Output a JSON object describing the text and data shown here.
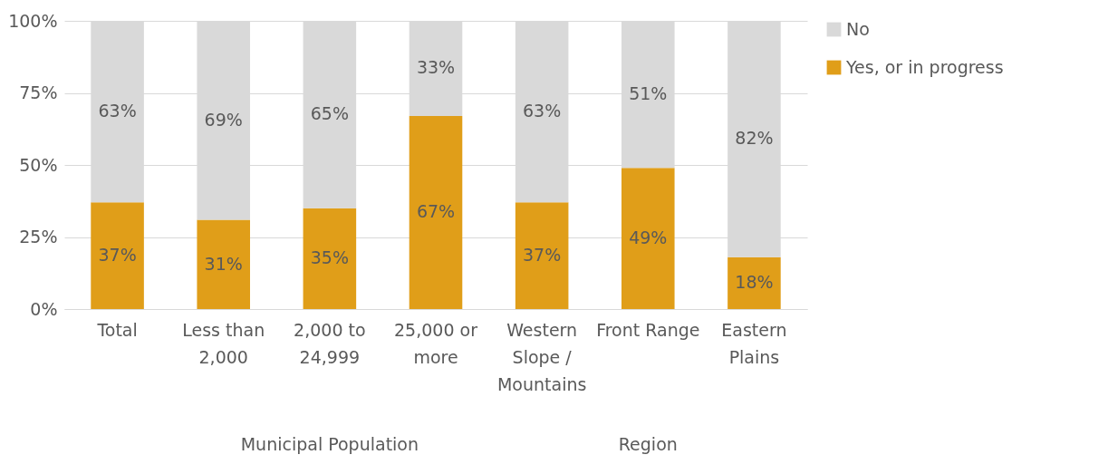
{
  "chart_data": {
    "type": "bar",
    "stacked": true,
    "categories": [
      "Total",
      "Less than 2,000",
      "2,000 to 24,999",
      "25,000 or more",
      "Western Slope / Mountains",
      "Front Range",
      "Eastern Plains"
    ],
    "series": [
      {
        "name": "Yes, or in progress",
        "color": "#e09e19",
        "values": [
          37,
          31,
          35,
          67,
          37,
          49,
          18
        ]
      },
      {
        "name": "No",
        "color": "#d9d9d9",
        "values": [
          63,
          69,
          65,
          33,
          63,
          51,
          82
        ]
      }
    ],
    "ylim": [
      0,
      100
    ],
    "yticks": [
      {
        "value": 0,
        "label": "0%"
      },
      {
        "value": 25,
        "label": "25%"
      },
      {
        "value": 50,
        "label": "50%"
      },
      {
        "value": 75,
        "label": "75%"
      },
      {
        "value": 100,
        "label": "100%"
      }
    ],
    "value_labels": [
      [
        "37%",
        "31%",
        "35%",
        "67%",
        "37%",
        "49%",
        "18%"
      ],
      [
        "63%",
        "69%",
        "65%",
        "33%",
        "63%",
        "51%",
        "82%"
      ]
    ],
    "annotations": [
      "Municipal Population",
      "Region"
    ],
    "grid": "y",
    "legend": "right"
  }
}
